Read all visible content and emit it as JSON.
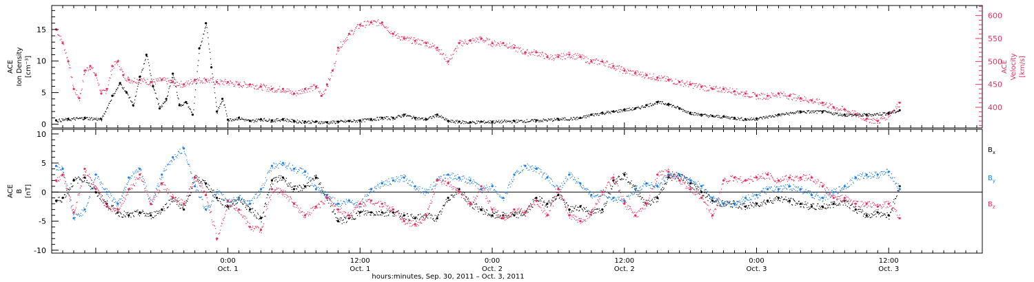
{
  "chart_data": [
    {
      "type": "scatter",
      "panel": "top",
      "left_axis": {
        "label_lines": [
          "ACE",
          "Ion Density",
          "[cm⁻³]"
        ],
        "ticks": [
          0,
          5,
          10,
          15
        ],
        "ylim": [
          -0.6,
          18.8
        ],
        "color": "#000000"
      },
      "right_axis": {
        "label_lines": [
          "ACE",
          "Velocity",
          "[km/s]"
        ],
        "ticks": [
          400,
          450,
          500,
          550,
          600
        ],
        "ylim": [
          355,
          622
        ],
        "color": "#e8305c"
      },
      "series": [
        {
          "name": "",
          "axis": "left",
          "color": "#000000",
          "x": [
            -15.6,
            -14.5,
            -13,
            -11.5,
            -10.5,
            -9.8,
            -9.2,
            -8.6,
            -8,
            -7.4,
            -6.8,
            -6.2,
            -5.6,
            -5,
            -4.4,
            -3.8,
            -3.2,
            -2.6,
            -2,
            -1.5,
            -1,
            -0.5,
            0,
            1,
            2,
            3,
            4,
            5,
            6,
            7,
            8,
            9,
            10,
            11,
            12,
            13,
            14,
            15,
            16,
            17,
            18,
            19,
            20,
            21,
            22,
            23,
            24,
            26,
            28,
            30,
            32,
            33,
            34,
            35,
            36,
            37,
            38,
            39,
            40,
            41,
            42,
            43,
            44,
            45,
            46,
            47,
            48,
            50,
            52,
            54,
            56,
            58,
            60,
            61
          ],
          "y": [
            0.6,
            0.8,
            1.0,
            0.8,
            4.5,
            6.5,
            5.0,
            3.0,
            7.5,
            11.0,
            6.0,
            2.5,
            4.0,
            8.0,
            3.0,
            3.5,
            1.5,
            12.0,
            16.0,
            9.0,
            2.0,
            4.0,
            0.7,
            1.0,
            0.5,
            0.8,
            0.6,
            0.8,
            0.5,
            0.4,
            0.4,
            0.3,
            0.4,
            0.5,
            0.6,
            0.8,
            1.0,
            1.0,
            1.5,
            1.0,
            0.8,
            1.5,
            0.5,
            0.4,
            0.3,
            0.4,
            0.4,
            0.5,
            0.6,
            0.8,
            1.0,
            1.5,
            1.8,
            2.0,
            2.3,
            2.5,
            3.0,
            3.5,
            3.2,
            2.5,
            1.8,
            1.5,
            1.3,
            1.2,
            1.0,
            0.8,
            0.9,
            1.5,
            2.0,
            2.0,
            1.5,
            1.5,
            1.8,
            2.2
          ]
        },
        {
          "name": "",
          "axis": "right",
          "color": "#e8305c",
          "x": [
            -15.6,
            -15,
            -14.5,
            -14,
            -13.5,
            -13,
            -12.5,
            -12,
            -11.5,
            -11,
            -10.5,
            -10,
            -9.5,
            -9,
            -8,
            -7,
            -6,
            -5,
            -4,
            -3,
            -2,
            -1,
            0,
            1,
            2,
            3,
            4,
            5,
            6,
            7,
            8,
            8.5,
            9,
            9.5,
            10,
            11,
            12,
            13,
            14,
            15,
            16,
            17,
            18,
            19,
            20,
            21,
            22,
            23,
            24,
            25,
            26,
            27,
            28,
            29,
            30,
            31,
            32,
            33,
            34,
            35,
            36,
            37,
            38,
            39,
            40,
            41,
            42,
            43,
            44,
            45,
            46,
            47,
            48,
            49,
            50,
            51,
            52,
            53,
            54,
            55,
            56,
            57,
            58,
            59,
            60,
            61
          ],
          "y": [
            570,
            540,
            500,
            440,
            420,
            480,
            490,
            470,
            430,
            440,
            490,
            500,
            470,
            460,
            460,
            455,
            460,
            455,
            450,
            460,
            460,
            455,
            455,
            450,
            450,
            445,
            440,
            440,
            430,
            440,
            445,
            425,
            450,
            480,
            530,
            560,
            580,
            585,
            585,
            560,
            550,
            545,
            540,
            530,
            500,
            540,
            545,
            550,
            540,
            540,
            530,
            520,
            520,
            510,
            510,
            515,
            510,
            500,
            500,
            490,
            480,
            475,
            470,
            465,
            460,
            455,
            450,
            445,
            440,
            440,
            435,
            430,
            425,
            425,
            430,
            425,
            420,
            415,
            410,
            400,
            395,
            385,
            375,
            370,
            385,
            410
          ]
        }
      ]
    },
    {
      "type": "scatter",
      "panel": "bottom",
      "left_axis": {
        "label_lines": [
          "ACE",
          "B",
          "[nT]"
        ],
        "ticks": [
          -10,
          -5,
          0,
          5,
          10
        ],
        "ylim": [
          -10.5,
          10.8
        ]
      },
      "zero_line": true,
      "legend_position": "right",
      "series": [
        {
          "name": "Bx",
          "name_main": "B",
          "name_sub": "x",
          "color": "#000000",
          "x": [
            -15.6,
            -15,
            -14,
            -13,
            -12,
            -11,
            -10,
            -9,
            -8,
            -7,
            -6,
            -5,
            -4,
            -3,
            -2,
            -1,
            0,
            1,
            2,
            3,
            4,
            5,
            6,
            7,
            8,
            9,
            10,
            11,
            12,
            13,
            14,
            15,
            16,
            17,
            18,
            19,
            20,
            21,
            22,
            23,
            24,
            25,
            26,
            27,
            28,
            29,
            30,
            31,
            32,
            33,
            34,
            35,
            36,
            37,
            38,
            39,
            40,
            41,
            42,
            43,
            44,
            45,
            46,
            47,
            48,
            49,
            50,
            51,
            52,
            53,
            54,
            55,
            56,
            57,
            58,
            59,
            60,
            61
          ],
          "y": [
            -1.5,
            -1.0,
            2.0,
            2.5,
            0.0,
            -2.0,
            -3.5,
            -4.0,
            -3.5,
            -4.0,
            -3.0,
            -1.0,
            -3.0,
            2.5,
            1.5,
            -1.0,
            -2.5,
            -1.0,
            -3.0,
            -4.5,
            2.0,
            2.5,
            0.5,
            1.0,
            2.5,
            -1.0,
            -5.0,
            -4.5,
            -3.5,
            -3.5,
            -3.5,
            -3.5,
            -4.0,
            -4.5,
            -4.0,
            -4.5,
            -1.0,
            0.5,
            -2.0,
            -3.0,
            -4.0,
            -4.0,
            -4.0,
            -3.5,
            -1.0,
            -2.0,
            -0.5,
            -3.0,
            -2.5,
            -3.5,
            -3.0,
            2.0,
            3.0,
            0.5,
            -2.0,
            -1.0,
            2.5,
            3.0,
            1.5,
            0.0,
            -1.5,
            -2.0,
            -2.0,
            -2.5,
            -2.0,
            -1.5,
            -1.0,
            -1.5,
            -2.0,
            -2.5,
            -2.5,
            -2.0,
            -1.5,
            -3.0,
            -4.0,
            -3.5,
            -4.0,
            1.0
          ]
        },
        {
          "name": "By",
          "name_main": "B",
          "name_sub": "y",
          "color": "#1e7fe0",
          "x": [
            -15.6,
            -15,
            -14,
            -13,
            -12,
            -11,
            -10,
            -9,
            -8,
            -7,
            -6,
            -5,
            -4,
            -3,
            -2,
            -1,
            0,
            1,
            2,
            3,
            4,
            5,
            6,
            7,
            8,
            9,
            10,
            11,
            12,
            13,
            14,
            15,
            16,
            17,
            18,
            19,
            20,
            21,
            22,
            23,
            24,
            25,
            26,
            27,
            28,
            29,
            30,
            31,
            32,
            33,
            34,
            35,
            36,
            37,
            38,
            39,
            40,
            41,
            42,
            43,
            44,
            45,
            46,
            47,
            48,
            49,
            50,
            51,
            52,
            53,
            54,
            55,
            56,
            57,
            58,
            59,
            60,
            61
          ],
          "y": [
            4.5,
            4.0,
            -4.5,
            -3.0,
            3.0,
            0.0,
            -2.0,
            2.5,
            4.0,
            -2.0,
            3.0,
            6.0,
            7.5,
            1.0,
            -3.0,
            0.0,
            -1.5,
            -1.0,
            -2.0,
            0.5,
            4.5,
            5.0,
            4.0,
            3.5,
            0.5,
            -0.5,
            -2.0,
            -1.5,
            -2.0,
            0.5,
            1.5,
            2.0,
            2.5,
            1.0,
            0.0,
            2.0,
            3.0,
            2.5,
            2.0,
            0.5,
            1.0,
            -1.0,
            3.0,
            4.5,
            4.0,
            2.5,
            0.5,
            3.0,
            1.5,
            -0.5,
            0.0,
            -1.0,
            -1.5,
            0.5,
            1.5,
            1.0,
            3.0,
            3.0,
            2.0,
            1.0,
            -1.0,
            -2.0,
            -2.0,
            -1.0,
            -0.5,
            0.5,
            0.5,
            1.0,
            0.5,
            -0.5,
            -1.0,
            0.0,
            1.0,
            2.5,
            3.0,
            3.0,
            3.5,
            0.5
          ]
        },
        {
          "name": "Bz",
          "name_main": "B",
          "name_sub": "z",
          "color": "#e8305c",
          "x": [
            -15.6,
            -15,
            -14,
            -13,
            -12,
            -11,
            -10,
            -9,
            -8,
            -7,
            -6,
            -5,
            -4,
            -3,
            -2,
            -1,
            0,
            1,
            2,
            3,
            4,
            5,
            6,
            7,
            8,
            9,
            10,
            11,
            12,
            13,
            14,
            15,
            16,
            17,
            18,
            19,
            20,
            21,
            22,
            23,
            24,
            25,
            26,
            27,
            28,
            29,
            30,
            31,
            32,
            33,
            34,
            35,
            36,
            37,
            38,
            39,
            40,
            41,
            42,
            43,
            44,
            45,
            46,
            47,
            48,
            49,
            50,
            51,
            52,
            53,
            54,
            55,
            56,
            57,
            58,
            59,
            60,
            61
          ],
          "y": [
            2.0,
            3.0,
            -3.5,
            4.0,
            0.5,
            -2.5,
            -3.0,
            0.5,
            3.0,
            -2.0,
            1.5,
            -1.0,
            -2.0,
            2.5,
            -0.5,
            -8.0,
            -1.5,
            -3.0,
            -6.0,
            -6.5,
            0.5,
            0.0,
            -2.0,
            -4.0,
            -2.5,
            -1.0,
            -3.0,
            -4.0,
            -2.0,
            -1.5,
            -2.0,
            -3.0,
            -5.0,
            -5.5,
            -4.0,
            2.0,
            1.5,
            0.0,
            -2.0,
            1.0,
            -3.0,
            -4.5,
            -3.0,
            -3.5,
            -1.5,
            -4.0,
            0.5,
            -4.0,
            -5.0,
            -3.5,
            0.0,
            2.5,
            -2.0,
            -4.0,
            -2.0,
            3.0,
            3.5,
            2.0,
            0.5,
            -1.0,
            -4.0,
            2.0,
            2.5,
            2.0,
            2.5,
            3.0,
            2.0,
            2.5,
            2.5,
            2.5,
            1.0,
            -1.0,
            -1.0,
            -2.0,
            -2.0,
            -2.5,
            -2.0,
            -4.5
          ]
        }
      ]
    }
  ],
  "x_axis": {
    "ticks": [
      {
        "x": 0,
        "time": "0:00",
        "date": "Oct. 1"
      },
      {
        "x": 12,
        "time": "12:00",
        "date": "Oct. 1"
      },
      {
        "x": 24,
        "time": "0:00",
        "date": "Oct. 2"
      },
      {
        "x": 36,
        "time": "12:00",
        "date": "Oct. 2"
      },
      {
        "x": 48,
        "time": "0:00",
        "date": "Oct. 3"
      },
      {
        "x": 60,
        "time": "12:00",
        "date": "Oct. 3"
      }
    ],
    "xlim": [
      -16,
      68.5
    ],
    "label": "hours:minutes, Sep. 30, 2011 – Oct. 3, 2011"
  }
}
